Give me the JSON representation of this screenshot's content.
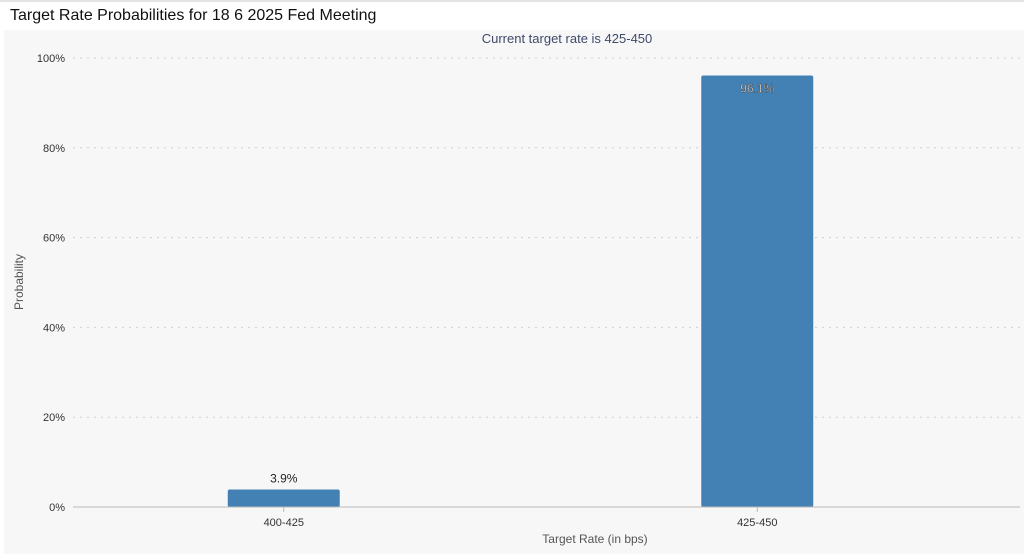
{
  "page": {
    "title": "Target Rate Probabilities for 18 6 2025 Fed Meeting"
  },
  "chart_data": {
    "type": "bar",
    "subtitle": "Current target rate is 425-450",
    "categories": [
      "400-425",
      "425-450"
    ],
    "values": [
      3.9,
      96.1
    ],
    "data_labels": [
      "3.9%",
      "96.1%"
    ],
    "xlabel": "Target Rate (in bps)",
    "ylabel": "Probability",
    "ylim": [
      0,
      100
    ],
    "y_ticks": [
      0,
      20,
      40,
      60,
      80,
      100
    ],
    "y_tick_labels": [
      "0%",
      "20%",
      "40%",
      "60%",
      "80%",
      "100%"
    ],
    "grid": true,
    "colors": {
      "bar": "#4380b4",
      "grid": "#d0d0d0",
      "axis": "#b8b8b8"
    }
  }
}
